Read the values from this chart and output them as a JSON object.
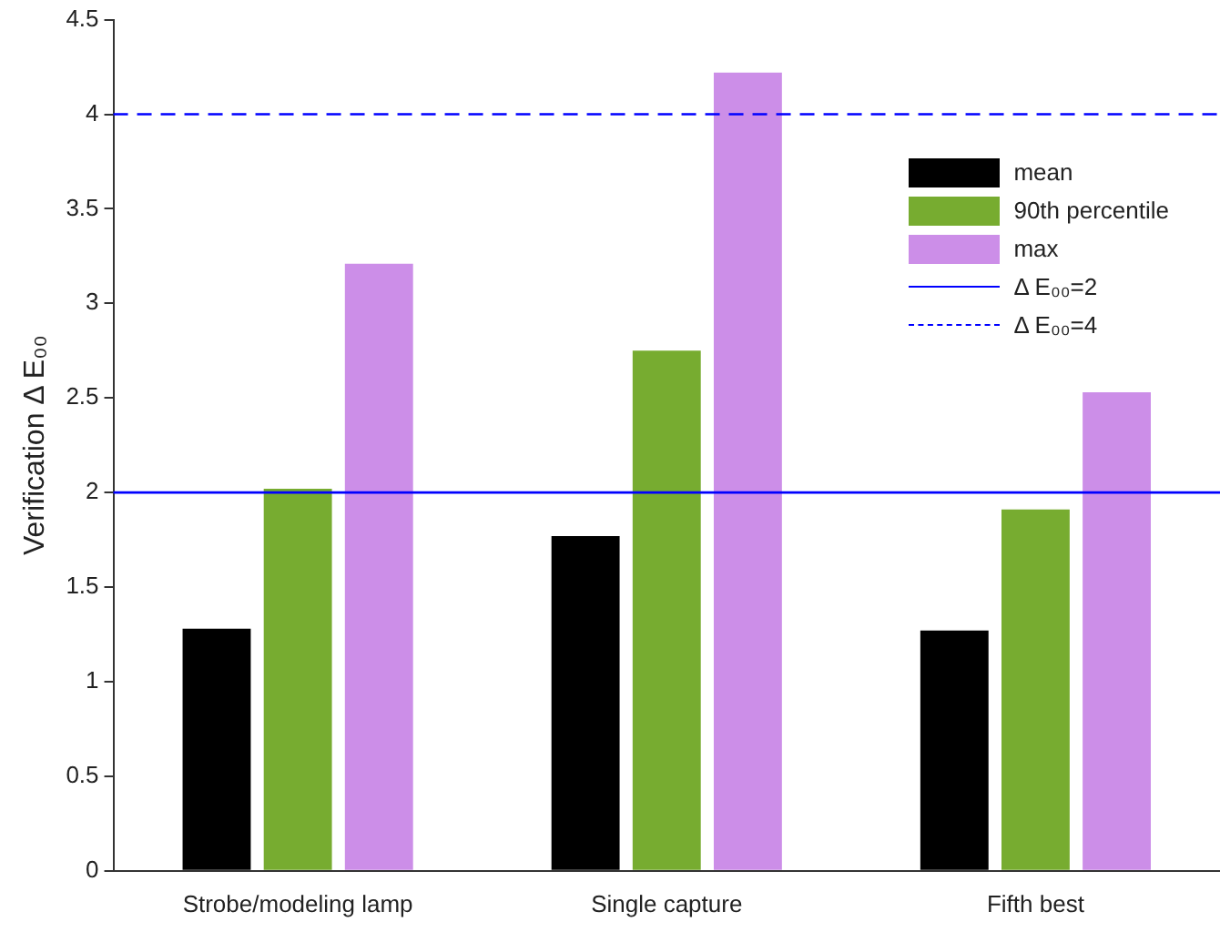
{
  "chart_data": {
    "type": "bar",
    "ylabel": "Verification Δ E₀₀",
    "categories": [
      "Strobe/modeling lamp",
      "Single capture",
      "Fifth best"
    ],
    "series": [
      {
        "name": "mean",
        "color": "#000000",
        "values": [
          1.28,
          1.77,
          1.27
        ]
      },
      {
        "name": "90th percentile",
        "color": "#77ac30",
        "values": [
          2.02,
          2.75,
          1.91
        ]
      },
      {
        "name": "max",
        "color": "#cc8ee8",
        "values": [
          3.21,
          4.22,
          2.53
        ]
      }
    ],
    "ylim": [
      0,
      4.5
    ],
    "yticks": [
      0,
      0.5,
      1,
      1.5,
      2,
      2.5,
      3,
      3.5,
      4,
      4.5
    ],
    "grid": false,
    "legend": "top right",
    "ref_lines": [
      {
        "axis": "y",
        "value": 2,
        "label": "Δ E₀₀=2",
        "color": "#0000ff",
        "line_style": "solid"
      },
      {
        "axis": "y",
        "value": 4,
        "label": "Δ E₀₀=4",
        "color": "#0000ff",
        "line_style": "dashed"
      }
    ]
  }
}
